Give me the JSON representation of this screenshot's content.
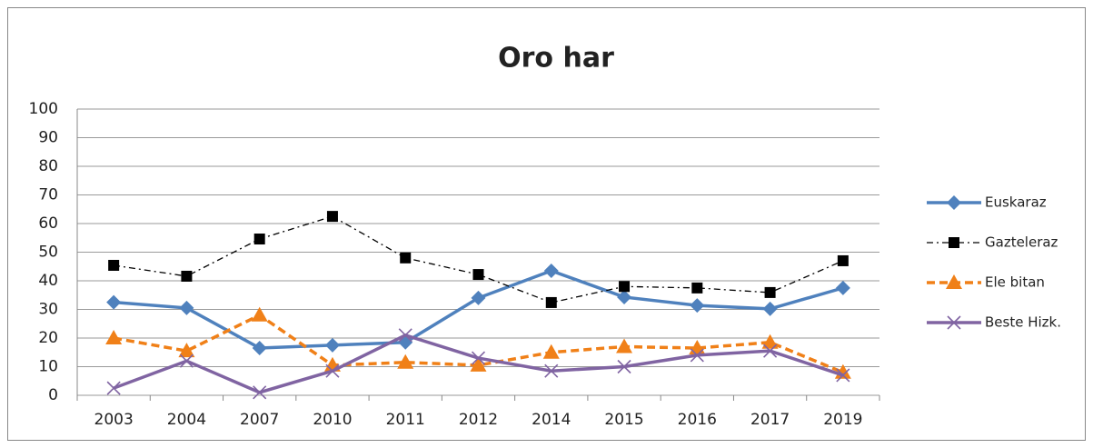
{
  "chart_data": {
    "type": "line",
    "title": "Oro har",
    "categories": [
      "2003",
      "2004",
      "2007",
      "2010",
      "2011",
      "2012",
      "2014",
      "2015",
      "2016",
      "2017",
      "2019"
    ],
    "series": [
      {
        "name": "Euskaraz",
        "color": "#4f81bd",
        "dash": "solid",
        "marker": "diamond",
        "values": [
          32.5,
          30.5,
          16.5,
          17.5,
          18.5,
          34,
          43.5,
          34.3,
          31.4,
          30.2,
          37.5
        ]
      },
      {
        "name": "Gazteleraz",
        "color": "#000000",
        "dash": "dashdot",
        "marker": "square",
        "values": [
          45.4,
          41.6,
          54.6,
          62.5,
          48,
          42.2,
          32.4,
          38,
          37.5,
          35.9,
          47
        ]
      },
      {
        "name": "Ele bitan",
        "color": "#f08018",
        "dash": "dashed",
        "marker": "triangle",
        "values": [
          20,
          15.5,
          28,
          10.5,
          11.5,
          10.5,
          15,
          17,
          16.5,
          18.5,
          8
        ]
      },
      {
        "name": "Beste Hizk.",
        "color": "#8064a2",
        "dash": "solid",
        "marker": "x",
        "values": [
          2.5,
          12,
          1,
          8.5,
          21,
          13,
          8.5,
          10,
          14,
          15.5,
          7
        ]
      }
    ],
    "ylim": [
      0,
      100
    ],
    "yticks": [
      0,
      10,
      20,
      30,
      40,
      50,
      60,
      70,
      80,
      90,
      100
    ],
    "grid": true,
    "legend": "right"
  }
}
